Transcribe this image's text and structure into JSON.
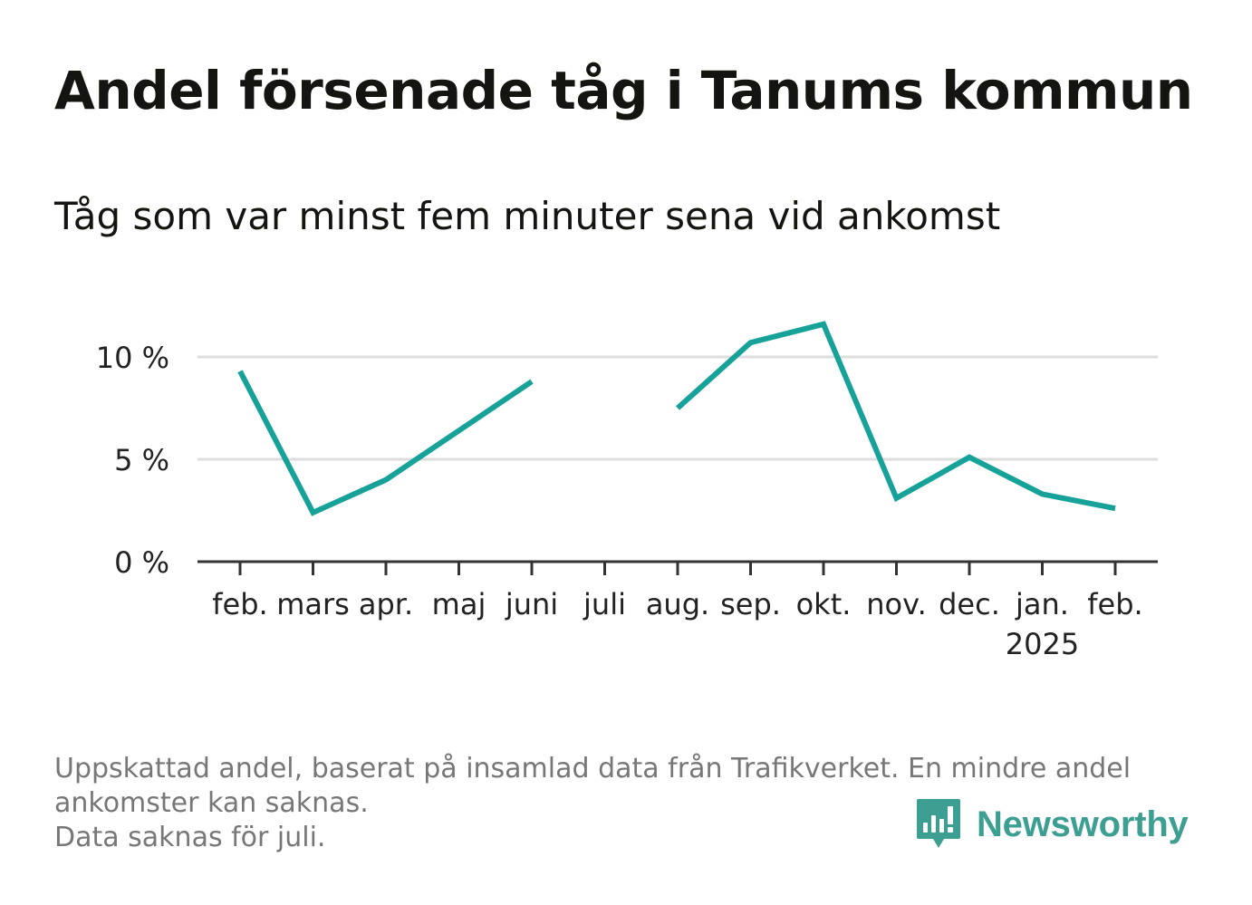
{
  "title": "Andel försenade tåg i Tanums kommun",
  "subtitle": "Tåg som var minst fem minuter sena vid ankomst",
  "notes": [
    "Uppskattad andel, baserat på insamlad data från Trafikverket. En mindre andel",
    "ankomster kan saknas.",
    "Data saknas för juli."
  ],
  "logo": {
    "text": "Newsworthy"
  },
  "colors": {
    "line": "#16a299",
    "grid": "#dddddd",
    "axis": "#333333",
    "logo": "#3d9e92"
  },
  "chart_data": {
    "type": "line",
    "categories": [
      "feb.",
      "mars",
      "apr.",
      "maj",
      "juni",
      "juli",
      "aug.",
      "sep.",
      "okt.",
      "nov.",
      "dec.",
      "jan.",
      "feb."
    ],
    "year_labels": {
      "11": "2025"
    },
    "series": [
      {
        "values": [
          9.3,
          2.4,
          4.0,
          6.4,
          8.8,
          null,
          7.5,
          10.7,
          11.6,
          3.1,
          5.1,
          3.3,
          2.6
        ]
      }
    ],
    "y_ticks": [
      0,
      5,
      10
    ],
    "y_tick_labels": [
      "0 %",
      "5 %",
      "10 %"
    ],
    "ylim": [
      0,
      12
    ],
    "grid": true,
    "xlabel": "",
    "ylabel": ""
  }
}
